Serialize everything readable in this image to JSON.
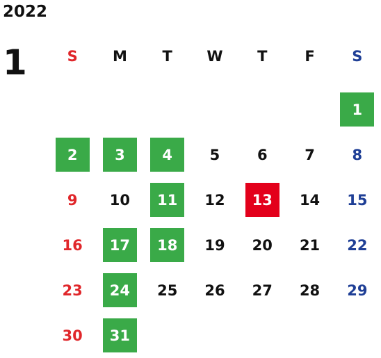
{
  "year": "2022",
  "month": "1",
  "colors": {
    "sunday": "#e0262a",
    "saturday": "#1f3f96",
    "weekday": "#111111",
    "holiday_bg": "#3aaa48",
    "today_bg": "#e3001b",
    "highlight_text": "#ffffff"
  },
  "weekdays": [
    "S",
    "M",
    "T",
    "W",
    "T",
    "F",
    "S"
  ],
  "weeks": [
    [
      null,
      null,
      null,
      null,
      null,
      null,
      {
        "d": "1",
        "type": "holiday"
      }
    ],
    [
      {
        "d": "2",
        "type": "holiday"
      },
      {
        "d": "3",
        "type": "holiday"
      },
      {
        "d": "4",
        "type": "holiday"
      },
      {
        "d": "5"
      },
      {
        "d": "6"
      },
      {
        "d": "7"
      },
      {
        "d": "8"
      }
    ],
    [
      {
        "d": "9"
      },
      {
        "d": "10"
      },
      {
        "d": "11",
        "type": "holiday"
      },
      {
        "d": "12"
      },
      {
        "d": "13",
        "type": "today"
      },
      {
        "d": "14"
      },
      {
        "d": "15"
      }
    ],
    [
      {
        "d": "16"
      },
      {
        "d": "17",
        "type": "holiday"
      },
      {
        "d": "18",
        "type": "holiday"
      },
      {
        "d": "19"
      },
      {
        "d": "20"
      },
      {
        "d": "21"
      },
      {
        "d": "22"
      }
    ],
    [
      {
        "d": "23"
      },
      {
        "d": "24",
        "type": "holiday"
      },
      {
        "d": "25"
      },
      {
        "d": "26"
      },
      {
        "d": "27"
      },
      {
        "d": "28"
      },
      {
        "d": "29"
      }
    ],
    [
      {
        "d": "30"
      },
      {
        "d": "31",
        "type": "holiday"
      },
      null,
      null,
      null,
      null,
      null
    ]
  ]
}
